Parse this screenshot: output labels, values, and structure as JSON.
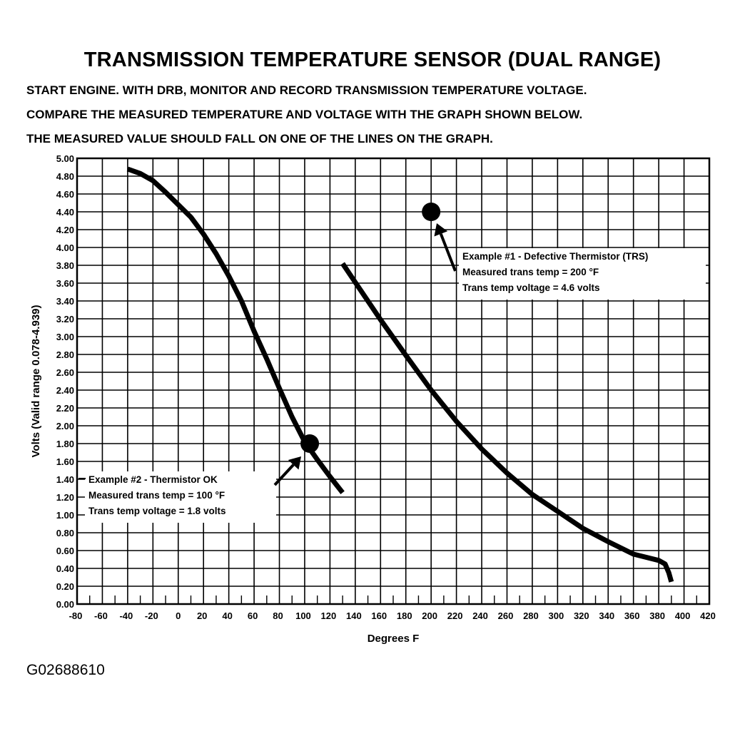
{
  "title": "TRANSMISSION TEMPERATURE SENSOR (DUAL RANGE)",
  "instructions": [
    "START ENGINE.  WITH DRB, MONITOR AND RECORD TRANSMISSION TEMPERATURE VOLTAGE.",
    "COMPARE THE MEASURED TEMPERATURE AND VOLTAGE WITH THE GRAPH SHOWN BELOW.",
    "THE MEASURED VALUE SHOULD FALL ON ONE OF THE LINES ON THE GRAPH."
  ],
  "figure_id": "G02688610",
  "chart_data": {
    "type": "line",
    "xlabel": "Degrees F",
    "ylabel": "Volts (Valid range 0.078-4.939)",
    "xlim": [
      -80,
      420
    ],
    "ylim": [
      0,
      5
    ],
    "x_ticks": [
      -80,
      -60,
      -40,
      -20,
      0,
      20,
      40,
      60,
      80,
      100,
      120,
      140,
      160,
      180,
      200,
      220,
      240,
      260,
      280,
      300,
      320,
      340,
      360,
      380,
      400,
      420
    ],
    "y_ticks": [
      "0.00",
      "0.20",
      "0.40",
      "0.60",
      "0.80",
      "1.00",
      "1.20",
      "1.40",
      "1.60",
      "1.80",
      "2.00",
      "2.20",
      "2.40",
      "2.60",
      "2.80",
      "3.00",
      "3.20",
      "3.40",
      "3.60",
      "3.80",
      "4.00",
      "4.20",
      "4.40",
      "4.60",
      "4.80",
      "5.00"
    ],
    "grid": true,
    "series": [
      {
        "x": [
          -40,
          -30,
          -20,
          -10,
          0,
          10,
          20,
          30,
          40,
          50,
          60,
          70,
          80,
          90,
          100,
          110,
          120,
          130
        ],
        "y": [
          4.88,
          4.83,
          4.75,
          4.62,
          4.48,
          4.34,
          4.15,
          3.93,
          3.68,
          3.4,
          3.06,
          2.75,
          2.42,
          2.1,
          1.82,
          1.62,
          1.43,
          1.25
        ]
      },
      {
        "x": [
          130,
          140,
          160,
          180,
          200,
          220,
          240,
          260,
          280,
          300,
          320,
          340,
          360,
          380,
          385,
          388,
          390
        ],
        "y": [
          3.82,
          3.61,
          3.19,
          2.79,
          2.4,
          2.05,
          1.74,
          1.47,
          1.23,
          1.04,
          0.85,
          0.7,
          0.56,
          0.49,
          0.45,
          0.35,
          0.25
        ]
      }
    ],
    "annotations": [
      {
        "point": [
          200,
          4.4
        ],
        "lines": [
          "Example #1 - Defective Thermistor (TRS)",
          "Measured trans temp = 200 °F",
          "Trans temp voltage = 4.6 volts"
        ]
      },
      {
        "point": [
          104,
          1.8
        ],
        "lines": [
          "Example #2 - Thermistor OK",
          "Measured trans temp = 100 °F",
          "Trans temp voltage = 1.8 volts"
        ]
      }
    ]
  },
  "colors": {
    "ink": "#000000",
    "background": "#ffffff"
  }
}
